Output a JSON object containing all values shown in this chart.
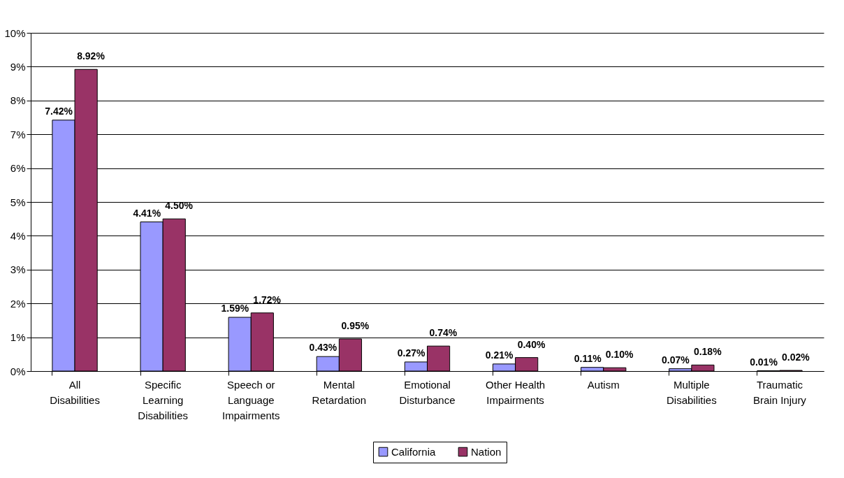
{
  "chart_data": {
    "type": "bar",
    "categories": [
      "All Disabilities",
      "Specific Learning Disabilities",
      "Speech or Language Impairments",
      "Mental Retardation",
      "Emotional Disturbance",
      "Other Health Impairments",
      "Autism",
      "Multiple Disabilities",
      "Traumatic Brain Injury"
    ],
    "series": [
      {
        "name": "California",
        "color": "#9999ff",
        "values": [
          7.42,
          4.41,
          1.59,
          0.43,
          0.27,
          0.21,
          0.11,
          0.07,
          0.01
        ],
        "value_labels": [
          "7.42%",
          "4.41%",
          "1.59%",
          "0.43%",
          "0.27%",
          "0.21%",
          "0.11%",
          "0.07%",
          "0.01%"
        ]
      },
      {
        "name": "Nation",
        "color": "#993366",
        "values": [
          8.92,
          4.5,
          1.72,
          0.95,
          0.74,
          0.4,
          0.1,
          0.18,
          0.02
        ],
        "value_labels": [
          "8.92%",
          "4.50%",
          "1.72%",
          "0.95%",
          "0.74%",
          "0.40%",
          "0.10%",
          "0.18%",
          "0.02%"
        ]
      }
    ],
    "ylim": [
      0,
      10
    ],
    "yticks": [
      {
        "value": 0,
        "label": "0%"
      },
      {
        "value": 1,
        "label": "1%"
      },
      {
        "value": 2,
        "label": "2%"
      },
      {
        "value": 3,
        "label": "3%"
      },
      {
        "value": 4,
        "label": "4%"
      },
      {
        "value": 5,
        "label": "5%"
      },
      {
        "value": 6,
        "label": "6%"
      },
      {
        "value": 7,
        "label": "7%"
      },
      {
        "value": 8,
        "label": "8%"
      },
      {
        "value": 9,
        "label": "9%"
      },
      {
        "value": 10,
        "label": "10%"
      }
    ],
    "grid": "y",
    "legend": "bottom"
  }
}
